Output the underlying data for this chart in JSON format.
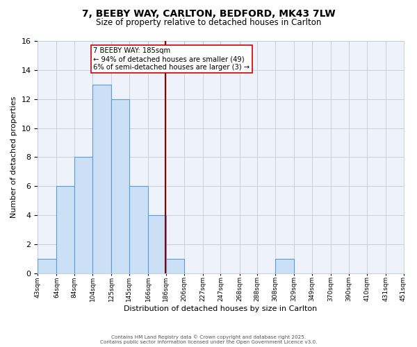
{
  "title": "7, BEEBY WAY, CARLTON, BEDFORD, MK43 7LW",
  "subtitle": "Size of property relative to detached houses in Carlton",
  "xlabel": "Distribution of detached houses by size in Carlton",
  "ylabel": "Number of detached properties",
  "bin_edges": [
    43,
    64,
    84,
    104,
    125,
    145,
    166,
    186,
    206,
    227,
    247,
    268,
    288,
    308,
    329,
    349,
    370,
    390,
    410,
    431,
    451
  ],
  "bin_counts": [
    1,
    6,
    8,
    13,
    12,
    6,
    4,
    1,
    0,
    0,
    0,
    0,
    0,
    1,
    0,
    0,
    0,
    0,
    0,
    0
  ],
  "bar_facecolor": "#cce0f5",
  "bar_edgecolor": "#5b9bd5",
  "vline_x": 185,
  "vline_color": "#8b0000",
  "annotation_line1": "7 BEEBY WAY: 185sqm",
  "annotation_line2": "← 94% of detached houses are smaller (49)",
  "annotation_line3": "6% of semi-detached houses are larger (3) →",
  "annotation_box_facecolor": "white",
  "annotation_box_edgecolor": "#cc0000",
  "ylim": [
    0,
    16
  ],
  "yticks": [
    0,
    2,
    4,
    6,
    8,
    10,
    12,
    14,
    16
  ],
  "grid_color": "#c8c8d0",
  "background_color": "#eef2fa",
  "footer_line1": "Contains HM Land Registry data © Crown copyright and database right 2025.",
  "footer_line2": "Contains public sector information licensed under the Open Government Licence v3.0.",
  "title_fontsize": 10,
  "subtitle_fontsize": 8.5,
  "tick_labels": [
    "43sqm",
    "64sqm",
    "84sqm",
    "104sqm",
    "125sqm",
    "145sqm",
    "166sqm",
    "186sqm",
    "206sqm",
    "227sqm",
    "247sqm",
    "268sqm",
    "288sqm",
    "308sqm",
    "329sqm",
    "349sqm",
    "370sqm",
    "390sqm",
    "410sqm",
    "431sqm",
    "451sqm"
  ]
}
